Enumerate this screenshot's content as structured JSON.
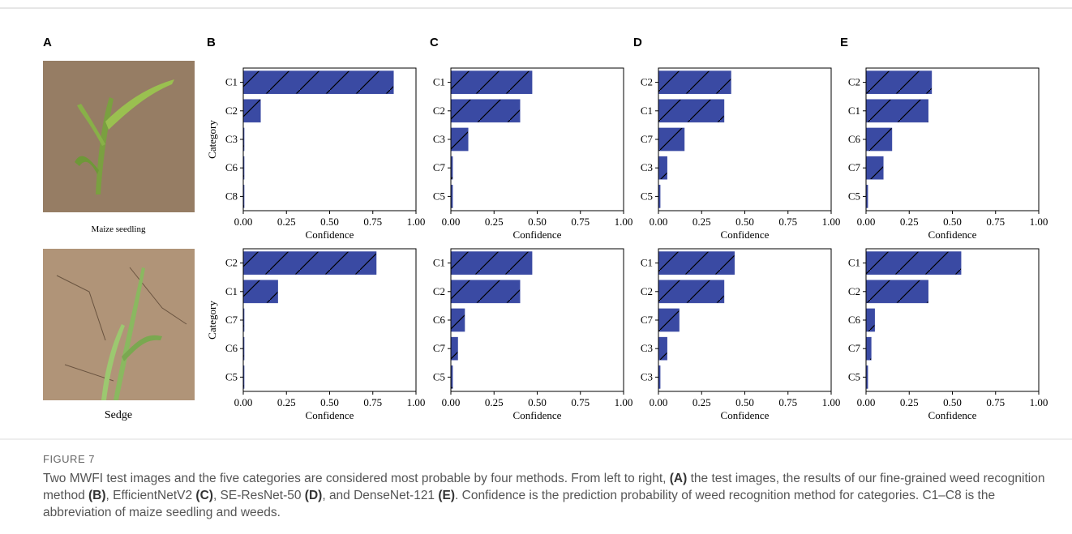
{
  "panels": [
    "A",
    "B",
    "C",
    "D",
    "E"
  ],
  "images": [
    {
      "label": "Maize seedling"
    },
    {
      "label": "Sedge"
    }
  ],
  "figure": {
    "label": "FIGURE 7",
    "caption": [
      {
        "text": "Two MWFI test images and the five categories are considered most probable by four methods. From left to right, ",
        "bold": false
      },
      {
        "text": "(A)",
        "bold": true
      },
      {
        "text": " the test images, the results of our fine-grained weed recognition method ",
        "bold": false
      },
      {
        "text": "(B)",
        "bold": true
      },
      {
        "text": ", EfficientNetV2 ",
        "bold": false
      },
      {
        "text": "(C)",
        "bold": true
      },
      {
        "text": ", SE-ResNet-50 ",
        "bold": false
      },
      {
        "text": "(D)",
        "bold": true
      },
      {
        "text": ", and DenseNet-121 ",
        "bold": false
      },
      {
        "text": "(E)",
        "bold": true
      },
      {
        "text": ". Confidence is the prediction probability of weed recognition method for categories. C1–C8 is the abbreviation of maize seedling and weeds.",
        "bold": false
      }
    ]
  },
  "chart_data": [
    {
      "type": "barh",
      "ylabel": "Category",
      "xlabel": "Confidence",
      "categories": [
        "C1",
        "C2",
        "C3",
        "C6",
        "C8"
      ],
      "values": [
        0.87,
        0.1,
        0.005,
        0.005,
        0.005
      ],
      "color": "#3a4aa3",
      "hatch": true,
      "xlim": [
        0,
        1
      ],
      "xticks": [
        {
          "value": 0,
          "label": "0.00"
        },
        {
          "value": 0.25,
          "label": "0.25"
        },
        {
          "value": 0.5,
          "label": "0.50"
        },
        {
          "value": 0.75,
          "label": "0.75"
        },
        {
          "value": 1,
          "label": "1.00"
        }
      ]
    },
    {
      "type": "barh",
      "xlabel": "Confidence",
      "categories": [
        "C1",
        "C2",
        "C3",
        "C7",
        "C5"
      ],
      "values": [
        0.47,
        0.4,
        0.1,
        0.01,
        0.01
      ],
      "color": "#3a4aa3",
      "hatch": true,
      "xlim": [
        0,
        1
      ],
      "xticks": [
        {
          "value": 0,
          "label": "0.00"
        },
        {
          "value": 0.25,
          "label": "0.25"
        },
        {
          "value": 0.5,
          "label": "0.50"
        },
        {
          "value": 0.75,
          "label": "0.75"
        },
        {
          "value": 1,
          "label": "1.00"
        }
      ]
    },
    {
      "type": "barh",
      "xlabel": "Confidence",
      "categories": [
        "C2",
        "C1",
        "C7",
        "C3",
        "C5"
      ],
      "values": [
        0.42,
        0.38,
        0.15,
        0.05,
        0.01
      ],
      "color": "#3a4aa3",
      "hatch": true,
      "xlim": [
        0,
        1
      ],
      "xticks": [
        {
          "value": 0,
          "label": "0.00"
        },
        {
          "value": 0.25,
          "label": "0.25"
        },
        {
          "value": 0.5,
          "label": "0.50"
        },
        {
          "value": 0.75,
          "label": "0.75"
        },
        {
          "value": 1,
          "label": "1.00"
        }
      ]
    },
    {
      "type": "barh",
      "xlabel": "Confidence",
      "categories": [
        "C2",
        "C1",
        "C6",
        "C7",
        "C5"
      ],
      "values": [
        0.38,
        0.36,
        0.15,
        0.1,
        0.01
      ],
      "color": "#3a4aa3",
      "hatch": true,
      "xlim": [
        0,
        1
      ],
      "xticks": [
        {
          "value": 0,
          "label": "0.00"
        },
        {
          "value": 0.25,
          "label": "0.25"
        },
        {
          "value": 0.5,
          "label": "0.50"
        },
        {
          "value": 0.75,
          "label": "0.75"
        },
        {
          "value": 1,
          "label": "1.00"
        }
      ]
    },
    {
      "type": "barh",
      "ylabel": "Category",
      "xlabel": "Confidence",
      "categories": [
        "C2",
        "C1",
        "C7",
        "C6",
        "C5"
      ],
      "values": [
        0.77,
        0.2,
        0.005,
        0.005,
        0.005
      ],
      "color": "#3a4aa3",
      "hatch": true,
      "xlim": [
        0,
        1
      ],
      "xticks": [
        {
          "value": 0,
          "label": "0.00"
        },
        {
          "value": 0.25,
          "label": "0.25"
        },
        {
          "value": 0.5,
          "label": "0.50"
        },
        {
          "value": 0.75,
          "label": "0.75"
        },
        {
          "value": 1,
          "label": "1.00"
        }
      ]
    },
    {
      "type": "barh",
      "xlabel": "Confidence",
      "categories": [
        "C1",
        "C2",
        "C6",
        "C7",
        "C5"
      ],
      "values": [
        0.47,
        0.4,
        0.08,
        0.04,
        0.01
      ],
      "color": "#3a4aa3",
      "hatch": true,
      "xlim": [
        0,
        1
      ],
      "xticks": [
        {
          "value": 0,
          "label": "0.00"
        },
        {
          "value": 0.25,
          "label": "0.25"
        },
        {
          "value": 0.5,
          "label": "0.50"
        },
        {
          "value": 0.75,
          "label": "0.75"
        },
        {
          "value": 1,
          "label": "1.00"
        }
      ]
    },
    {
      "type": "barh",
      "xlabel": "Confidence",
      "categories": [
        "C1",
        "C2",
        "C7",
        "C3",
        "C3"
      ],
      "values": [
        0.44,
        0.38,
        0.12,
        0.05,
        0.01
      ],
      "color": "#3a4aa3",
      "hatch": true,
      "xlim": [
        0,
        1
      ],
      "xticks": [
        {
          "value": 0,
          "label": "0.00"
        },
        {
          "value": 0.25,
          "label": "0.25"
        },
        {
          "value": 0.5,
          "label": "0.50"
        },
        {
          "value": 0.75,
          "label": "0.75"
        },
        {
          "value": 1,
          "label": "1.00"
        }
      ]
    },
    {
      "type": "barh",
      "xlabel": "Confidence",
      "categories": [
        "C1",
        "C2",
        "C6",
        "C7",
        "C5"
      ],
      "values": [
        0.55,
        0.36,
        0.05,
        0.03,
        0.01
      ],
      "color": "#3a4aa3",
      "hatch": true,
      "xlim": [
        0,
        1
      ],
      "xticks": [
        {
          "value": 0,
          "label": "0.00"
        },
        {
          "value": 0.25,
          "label": "0.25"
        },
        {
          "value": 0.5,
          "label": "0.50"
        },
        {
          "value": 0.75,
          "label": "0.75"
        },
        {
          "value": 1,
          "label": "1.00"
        }
      ]
    }
  ]
}
